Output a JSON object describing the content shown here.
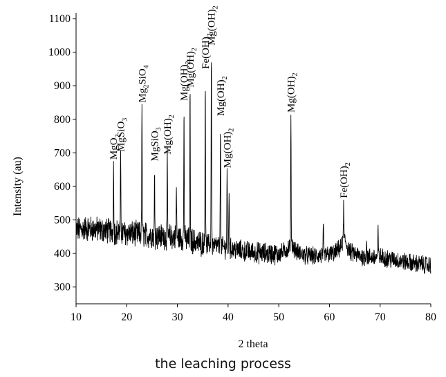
{
  "chart_data": {
    "type": "line",
    "title": "",
    "xlabel": "2 theta",
    "ylabel": "Intensity (au)",
    "xlim": [
      10,
      80
    ],
    "ylim": [
      250,
      1100
    ],
    "x_ticks": [
      10,
      20,
      30,
      40,
      50,
      60,
      70,
      80
    ],
    "y_ticks": [
      300,
      400,
      500,
      600,
      700,
      800,
      900,
      1000,
      1100
    ],
    "grid": false,
    "legend": "none",
    "line_color": "#000000",
    "series": [
      {
        "profile": [
          [
            10,
            470
          ],
          [
            12,
            475
          ],
          [
            14,
            472
          ],
          [
            16,
            468
          ],
          [
            17.4,
            465
          ],
          [
            19,
            462
          ],
          [
            20.5,
            460
          ],
          [
            22,
            458
          ],
          [
            24,
            455
          ],
          [
            26,
            452
          ],
          [
            28,
            450
          ],
          [
            30,
            448
          ],
          [
            32,
            442
          ],
          [
            34,
            432
          ],
          [
            35.5,
            428
          ],
          [
            37,
            425
          ],
          [
            38.5,
            420
          ],
          [
            40,
            415
          ],
          [
            42,
            410
          ],
          [
            44,
            405
          ],
          [
            46,
            402
          ],
          [
            48,
            400
          ],
          [
            50,
            398
          ],
          [
            51.5,
            410
          ],
          [
            52.5,
            430
          ],
          [
            53.5,
            405
          ],
          [
            55,
            395
          ],
          [
            57,
            392
          ],
          [
            59,
            395
          ],
          [
            61,
            400
          ],
          [
            62.3,
            420
          ],
          [
            63,
            440
          ],
          [
            64,
            405
          ],
          [
            66,
            392
          ],
          [
            68,
            388
          ],
          [
            70,
            390
          ],
          [
            72,
            383
          ],
          [
            74,
            378
          ],
          [
            76,
            372
          ],
          [
            78,
            368
          ],
          [
            80,
            365
          ]
        ],
        "peaks": [
          {
            "x": 17.4,
            "y": 660
          },
          {
            "x": 18.8,
            "y": 683
          },
          {
            "x": 23.0,
            "y": 830
          },
          {
            "x": 25.5,
            "y": 655
          },
          {
            "x": 28.0,
            "y": 675
          },
          {
            "x": 29.8,
            "y": 590
          },
          {
            "x": 31.3,
            "y": 835
          },
          {
            "x": 32.5,
            "y": 875
          },
          {
            "x": 35.5,
            "y": 930
          },
          {
            "x": 36.7,
            "y": 1000
          },
          {
            "x": 38.5,
            "y": 790
          },
          {
            "x": 39.8,
            "y": 635
          },
          {
            "x": 40.2,
            "y": 590
          },
          {
            "x": 52.4,
            "y": 800
          },
          {
            "x": 62.8,
            "y": 545
          },
          {
            "x": 58.8,
            "y": 470
          },
          {
            "x": 67.3,
            "y": 445
          },
          {
            "x": 69.6,
            "y": 470
          }
        ]
      }
    ],
    "annotations": [
      {
        "x": 17.4,
        "y": 680,
        "base": "MgO",
        "sub": "2"
      },
      {
        "x": 18.8,
        "y": 703,
        "base": "MgSiO",
        "sub": "3"
      },
      {
        "x": 23.0,
        "y": 850,
        "base": "Mg",
        "sub": "2",
        "base2": "SiO",
        "sub2": "4"
      },
      {
        "x": 25.5,
        "y": 675,
        "base": "MgSiO",
        "sub": "3"
      },
      {
        "x": 28.0,
        "y": 695,
        "base": "Mg(OH)",
        "sub": "2"
      },
      {
        "x": 31.3,
        "y": 855,
        "base": "Mg(OH)",
        "sub": "2"
      },
      {
        "x": 32.5,
        "y": 895,
        "base": "Mg(OH)",
        "sub": "2"
      },
      {
        "x": 35.5,
        "y": 950,
        "base": "Fe(OH)",
        "sub": "2"
      },
      {
        "x": 36.7,
        "y": 1020,
        "base": "Mg(OH)",
        "sub": "2"
      },
      {
        "x": 38.5,
        "y": 810,
        "base": "Mg(OH)",
        "sub": "2"
      },
      {
        "x": 39.8,
        "y": 655,
        "base": "Mg(OH)",
        "sub": "2"
      },
      {
        "x": 52.4,
        "y": 820,
        "base": "Mg(OH)",
        "sub": "2"
      },
      {
        "x": 62.8,
        "y": 565,
        "base": "Fe(OH)",
        "sub": "2"
      }
    ]
  },
  "caption": "the leaching process"
}
